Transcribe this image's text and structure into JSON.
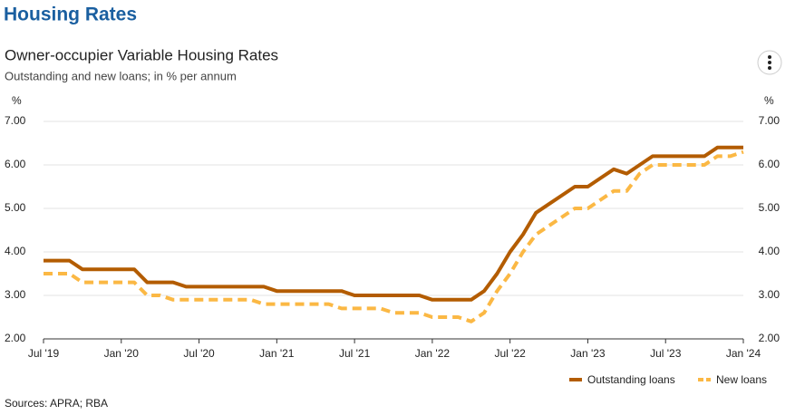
{
  "header": {
    "title": "Housing Rates"
  },
  "chart_data": {
    "type": "line",
    "title": "Owner-occupier Variable Housing Rates",
    "subtitle": "Outstanding and new loans; in % per annum",
    "y_unit": "%",
    "y2_unit": "%",
    "x": [
      "2019-07",
      "2019-08",
      "2019-09",
      "2019-10",
      "2019-11",
      "2019-12",
      "2020-01",
      "2020-02",
      "2020-03",
      "2020-04",
      "2020-05",
      "2020-06",
      "2020-07",
      "2020-08",
      "2020-09",
      "2020-10",
      "2020-11",
      "2020-12",
      "2021-01",
      "2021-02",
      "2021-03",
      "2021-04",
      "2021-05",
      "2021-06",
      "2021-07",
      "2021-08",
      "2021-09",
      "2021-10",
      "2021-11",
      "2021-12",
      "2022-01",
      "2022-02",
      "2022-03",
      "2022-04",
      "2022-05",
      "2022-06",
      "2022-07",
      "2022-08",
      "2022-09",
      "2022-10",
      "2022-11",
      "2022-12",
      "2023-01",
      "2023-02",
      "2023-03",
      "2023-04",
      "2023-05",
      "2023-06",
      "2023-07",
      "2023-08",
      "2023-09",
      "2023-10",
      "2023-11",
      "2023-12",
      "2024-01"
    ],
    "series": [
      {
        "name": "Outstanding loans",
        "color": "#b35c00",
        "style": "solid",
        "values": [
          3.8,
          3.8,
          3.8,
          3.6,
          3.6,
          3.6,
          3.6,
          3.6,
          3.3,
          3.3,
          3.3,
          3.2,
          3.2,
          3.2,
          3.2,
          3.2,
          3.2,
          3.2,
          3.1,
          3.1,
          3.1,
          3.1,
          3.1,
          3.1,
          3.0,
          3.0,
          3.0,
          3.0,
          3.0,
          3.0,
          2.9,
          2.9,
          2.9,
          2.9,
          3.1,
          3.5,
          4.0,
          4.4,
          4.9,
          5.1,
          5.3,
          5.5,
          5.5,
          5.7,
          5.9,
          5.8,
          6.0,
          6.2,
          6.2,
          6.2,
          6.2,
          6.2,
          6.4,
          6.4,
          6.4
        ]
      },
      {
        "name": "New loans",
        "color": "#fbb844",
        "style": "dashed",
        "values": [
          3.5,
          3.5,
          3.5,
          3.3,
          3.3,
          3.3,
          3.3,
          3.3,
          3.0,
          3.0,
          2.9,
          2.9,
          2.9,
          2.9,
          2.9,
          2.9,
          2.9,
          2.8,
          2.8,
          2.8,
          2.8,
          2.8,
          2.8,
          2.7,
          2.7,
          2.7,
          2.7,
          2.6,
          2.6,
          2.6,
          2.5,
          2.5,
          2.5,
          2.4,
          2.6,
          3.1,
          3.5,
          4.0,
          4.4,
          4.6,
          4.8,
          5.0,
          5.0,
          5.2,
          5.4,
          5.4,
          5.8,
          6.0,
          6.0,
          6.0,
          6.0,
          6.0,
          6.2,
          6.2,
          6.3
        ]
      }
    ],
    "ylim": [
      2,
      7
    ],
    "yticks": [
      {
        "value": 2,
        "label": "2.00"
      },
      {
        "value": 3,
        "label": "3.00"
      },
      {
        "value": 4,
        "label": "4.00"
      },
      {
        "value": 5,
        "label": "5.00"
      },
      {
        "value": 6,
        "label": "6.00"
      },
      {
        "value": 7,
        "label": "7.00"
      }
    ],
    "y2lim": [
      2,
      7
    ],
    "y2ticks": [
      {
        "value": 2,
        "label": "2.00"
      },
      {
        "value": 3,
        "label": "3.00"
      },
      {
        "value": 4,
        "label": "4.00"
      },
      {
        "value": 5,
        "label": "5.00"
      },
      {
        "value": 6,
        "label": "6.00"
      },
      {
        "value": 7,
        "label": "7.00"
      }
    ],
    "xticks": [
      {
        "value": "2019-07",
        "label": "Jul '19"
      },
      {
        "value": "2020-01",
        "label": "Jan '20"
      },
      {
        "value": "2020-07",
        "label": "Jul '20"
      },
      {
        "value": "2021-01",
        "label": "Jan '21"
      },
      {
        "value": "2021-07",
        "label": "Jul '21"
      },
      {
        "value": "2022-01",
        "label": "Jan '22"
      },
      {
        "value": "2022-07",
        "label": "Jul '22"
      },
      {
        "value": "2023-01",
        "label": "Jan '23"
      },
      {
        "value": "2023-07",
        "label": "Jul '23"
      },
      {
        "value": "2024-01",
        "label": "Jan '24"
      }
    ],
    "grid": true,
    "legend": "bottom-right",
    "source": "Sources: APRA; RBA"
  }
}
